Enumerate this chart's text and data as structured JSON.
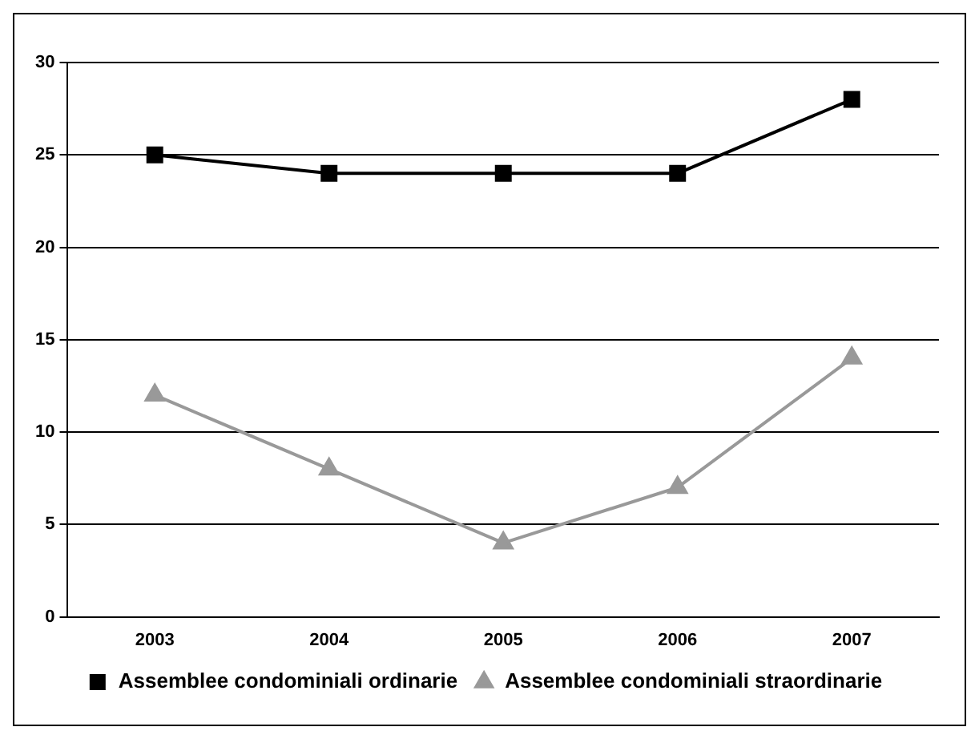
{
  "chart_data": {
    "type": "line",
    "categories": [
      "2003",
      "2004",
      "2005",
      "2006",
      "2007"
    ],
    "series": [
      {
        "name": "Assemblee condominiali ordinarie",
        "color": "#000000",
        "values": [
          25,
          24,
          24,
          24,
          28
        ],
        "marker": "square"
      },
      {
        "name": "Assemblee condominiali straordinarie",
        "color": "#999999",
        "values": [
          12,
          8,
          4,
          7,
          14
        ],
        "marker": "triangle"
      }
    ],
    "ylim": [
      0,
      30
    ],
    "yticks": [
      0,
      5,
      10,
      15,
      20,
      25,
      30
    ],
    "grid": "y",
    "legend": "bottom",
    "line_style": "solid"
  }
}
